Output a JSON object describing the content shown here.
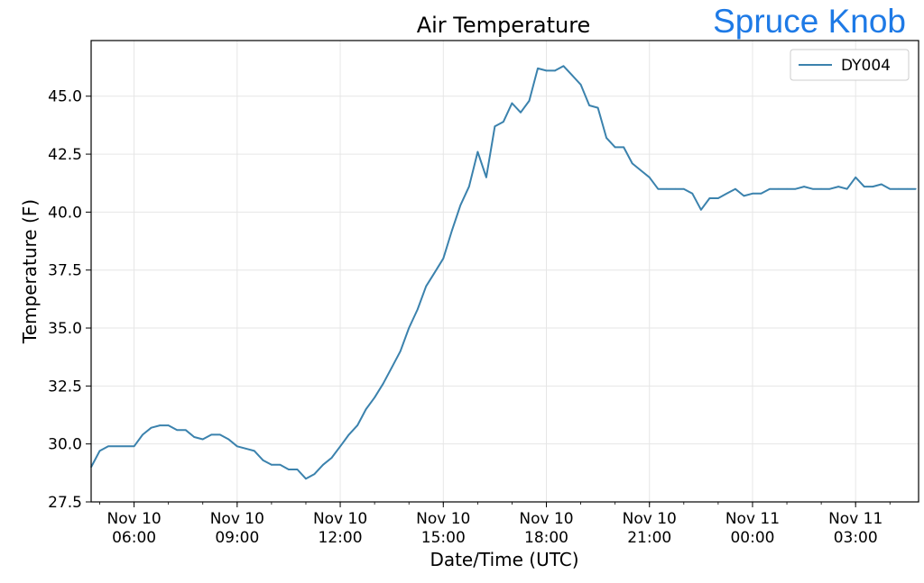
{
  "site_label": "Spruce Knob",
  "chart_data": {
    "type": "line",
    "title": "Air Temperature",
    "xlabel": "Date/Time (UTC)",
    "ylabel": "Temperature (F)",
    "x_range": [
      "2018-11-10T04:45",
      "2018-11-11T04:50"
    ],
    "ylim": [
      27.5,
      47.4
    ],
    "yticks": [
      "27.5",
      "30.0",
      "32.5",
      "35.0",
      "37.5",
      "40.0",
      "42.5",
      "45.0"
    ],
    "ytick_values": [
      27.5,
      30.0,
      32.5,
      35.0,
      37.5,
      40.0,
      42.5,
      45.0
    ],
    "xticks": [
      {
        "time": "2018-11-10T06:00",
        "line1": "Nov 10",
        "line2": "06:00"
      },
      {
        "time": "2018-11-10T09:00",
        "line1": "Nov 10",
        "line2": "09:00"
      },
      {
        "time": "2018-11-10T12:00",
        "line1": "Nov 10",
        "line2": "12:00"
      },
      {
        "time": "2018-11-10T15:00",
        "line1": "Nov 10",
        "line2": "15:00"
      },
      {
        "time": "2018-11-10T18:00",
        "line1": "Nov 10",
        "line2": "18:00"
      },
      {
        "time": "2018-11-10T21:00",
        "line1": "Nov 10",
        "line2": "21:00"
      },
      {
        "time": "2018-11-11T00:00",
        "line1": "Nov 11",
        "line2": "00:00"
      },
      {
        "time": "2018-11-11T03:00",
        "line1": "Nov 11",
        "line2": "03:00"
      }
    ],
    "grid": true,
    "legend_position": "top-right",
    "series": [
      {
        "name": "DY004",
        "color": "#3b82ad",
        "x": [
          "2018-11-10T04:45",
          "2018-11-10T05:00",
          "2018-11-10T05:15",
          "2018-11-10T05:30",
          "2018-11-10T05:45",
          "2018-11-10T06:00",
          "2018-11-10T06:15",
          "2018-11-10T06:30",
          "2018-11-10T06:45",
          "2018-11-10T07:00",
          "2018-11-10T07:15",
          "2018-11-10T07:30",
          "2018-11-10T07:45",
          "2018-11-10T08:00",
          "2018-11-10T08:15",
          "2018-11-10T08:30",
          "2018-11-10T08:45",
          "2018-11-10T09:00",
          "2018-11-10T09:15",
          "2018-11-10T09:30",
          "2018-11-10T09:45",
          "2018-11-10T10:00",
          "2018-11-10T10:15",
          "2018-11-10T10:30",
          "2018-11-10T10:45",
          "2018-11-10T11:00",
          "2018-11-10T11:15",
          "2018-11-10T11:30",
          "2018-11-10T11:45",
          "2018-11-10T12:00",
          "2018-11-10T12:15",
          "2018-11-10T12:30",
          "2018-11-10T12:45",
          "2018-11-10T13:00",
          "2018-11-10T13:15",
          "2018-11-10T13:30",
          "2018-11-10T13:45",
          "2018-11-10T14:00",
          "2018-11-10T14:15",
          "2018-11-10T14:30",
          "2018-11-10T14:45",
          "2018-11-10T15:00",
          "2018-11-10T15:15",
          "2018-11-10T15:30",
          "2018-11-10T15:45",
          "2018-11-10T16:00",
          "2018-11-10T16:15",
          "2018-11-10T16:30",
          "2018-11-10T16:45",
          "2018-11-10T17:00",
          "2018-11-10T17:15",
          "2018-11-10T17:30",
          "2018-11-10T17:45",
          "2018-11-10T18:00",
          "2018-11-10T18:15",
          "2018-11-10T18:30",
          "2018-11-10T18:45",
          "2018-11-10T19:00",
          "2018-11-10T19:15",
          "2018-11-10T19:30",
          "2018-11-10T19:45",
          "2018-11-10T20:00",
          "2018-11-10T20:15",
          "2018-11-10T20:30",
          "2018-11-10T20:45",
          "2018-11-10T21:00",
          "2018-11-10T21:15",
          "2018-11-10T21:30",
          "2018-11-10T21:45",
          "2018-11-10T22:00",
          "2018-11-10T22:15",
          "2018-11-10T22:30",
          "2018-11-10T22:45",
          "2018-11-10T23:00",
          "2018-11-10T23:15",
          "2018-11-10T23:30",
          "2018-11-10T23:45",
          "2018-11-11T00:00",
          "2018-11-11T00:15",
          "2018-11-11T00:30",
          "2018-11-11T00:45",
          "2018-11-11T01:00",
          "2018-11-11T01:15",
          "2018-11-11T01:30",
          "2018-11-11T01:45",
          "2018-11-11T02:00",
          "2018-11-11T02:15",
          "2018-11-11T02:30",
          "2018-11-11T02:45",
          "2018-11-11T03:00",
          "2018-11-11T03:15",
          "2018-11-11T03:30",
          "2018-11-11T03:45",
          "2018-11-11T04:00",
          "2018-11-11T04:15",
          "2018-11-11T04:30",
          "2018-11-11T04:45"
        ],
        "y": [
          29.0,
          29.7,
          29.9,
          29.9,
          29.9,
          29.9,
          30.4,
          30.7,
          30.8,
          30.8,
          30.6,
          30.6,
          30.3,
          30.2,
          30.4,
          30.4,
          30.2,
          29.9,
          29.8,
          29.7,
          29.3,
          29.1,
          29.1,
          28.9,
          28.9,
          28.5,
          28.7,
          29.1,
          29.4,
          29.9,
          30.4,
          30.8,
          31.5,
          32.0,
          32.6,
          33.3,
          34.0,
          35.0,
          35.8,
          36.8,
          37.4,
          38.0,
          39.2,
          40.3,
          41.1,
          42.6,
          41.5,
          43.7,
          43.9,
          44.7,
          44.3,
          44.8,
          46.2,
          46.1,
          46.1,
          46.3,
          45.9,
          45.5,
          44.6,
          44.5,
          43.2,
          42.8,
          42.8,
          42.1,
          41.8,
          41.5,
          41.0,
          41.0,
          41.0,
          41.0,
          40.8,
          40.1,
          40.6,
          40.6,
          40.8,
          41.0,
          40.7,
          40.8,
          40.8,
          41.0,
          41.0,
          41.0,
          41.0,
          41.1,
          41.0,
          41.0,
          41.0,
          41.1,
          41.0,
          41.5,
          41.1,
          41.1,
          41.2,
          41.0,
          41.0,
          41.0,
          41.0
        ]
      }
    ]
  }
}
